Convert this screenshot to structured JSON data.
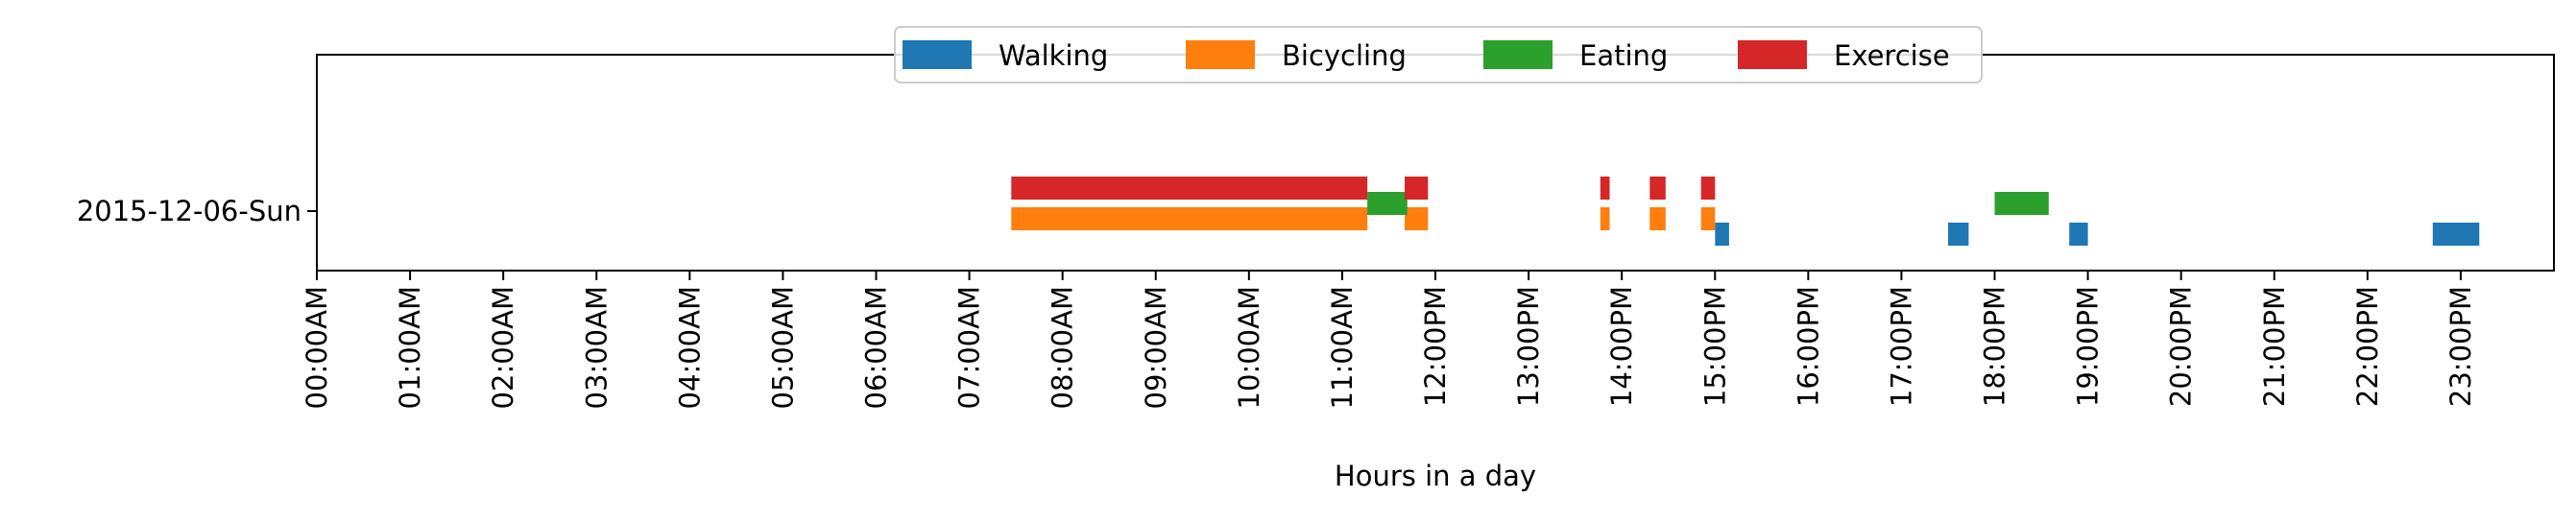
{
  "chart_data": {
    "type": "timeline",
    "xlabel": "Hours in a day",
    "xlim": [
      0,
      24
    ],
    "y_category": "2015-12-06-Sun",
    "x_ticks": [
      "00:00AM",
      "01:00AM",
      "02:00AM",
      "03:00AM",
      "04:00AM",
      "05:00AM",
      "06:00AM",
      "07:00AM",
      "08:00AM",
      "09:00AM",
      "10:00AM",
      "11:00AM",
      "12:00PM",
      "13:00PM",
      "14:00PM",
      "15:00PM",
      "16:00PM",
      "17:00PM",
      "18:00PM",
      "19:00PM",
      "20:00PM",
      "21:00PM",
      "22:00PM",
      "23:00PM"
    ],
    "legend_position": "top-center",
    "series": [
      {
        "name": "Walking",
        "color": "#1f77b4",
        "lane": 0,
        "intervals": [
          [
            15.0,
            15.15
          ],
          [
            17.5,
            17.72
          ],
          [
            18.8,
            19.0
          ],
          [
            22.7,
            23.2
          ]
        ]
      },
      {
        "name": "Bicycling",
        "color": "#ff7f0e",
        "lane": 1,
        "intervals": [
          [
            7.45,
            11.27
          ],
          [
            11.67,
            11.92
          ],
          [
            13.77,
            13.87
          ],
          [
            14.3,
            14.47
          ],
          [
            14.85,
            15.0
          ]
        ]
      },
      {
        "name": "Eating",
        "color": "#2ca02c",
        "lane": 2,
        "intervals": [
          [
            11.27,
            11.7
          ],
          [
            18.0,
            18.58
          ]
        ]
      },
      {
        "name": "Exercise",
        "color": "#d62728",
        "lane": 3,
        "intervals": [
          [
            7.45,
            11.27
          ],
          [
            11.67,
            11.92
          ],
          [
            13.77,
            13.87
          ],
          [
            14.3,
            14.47
          ],
          [
            14.85,
            15.0
          ]
        ]
      }
    ]
  }
}
